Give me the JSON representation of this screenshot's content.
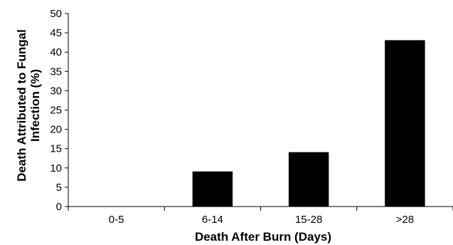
{
  "chart_data": {
    "type": "bar",
    "title": "",
    "xlabel": "Death After Burn (Days)",
    "ylabel_lines": [
      "Death Attributed to Fungal",
      "Infection (%)"
    ],
    "categories": [
      "0-5",
      "6-14",
      "15-28",
      ">28"
    ],
    "values": [
      0,
      9,
      14,
      43
    ],
    "ylim": [
      0,
      50
    ],
    "yticks": [
      0,
      5,
      10,
      15,
      20,
      25,
      30,
      35,
      40,
      45,
      50
    ],
    "grid": false,
    "legend": "none",
    "bar_color": "#000000"
  }
}
